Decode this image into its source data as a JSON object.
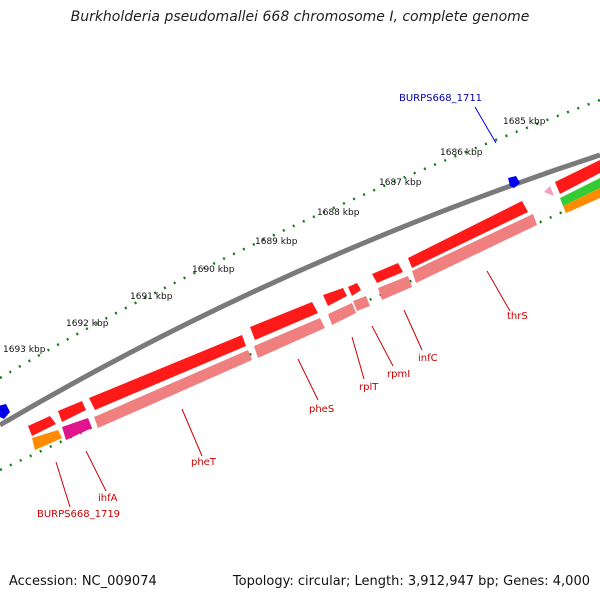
{
  "title": "Burkholderia pseudomallei 668 chromosome I, complete genome",
  "footer": {
    "accession": "Accession: NC_009074",
    "summary": "Topology: circular; Length: 3,912,947 bp; Genes: 4,000"
  },
  "colors": {
    "backbone": "#808080",
    "tick": "#1a7a1a",
    "red_gene": "#ff1a1a",
    "pink_gene": "#f08080",
    "magenta_gene": "#e0148c",
    "orange_gene": "#ff8c00",
    "green_gene": "#33cc33",
    "blue_gene": "#0000ee",
    "gene_label": "#cc0000",
    "special_label": "#0000aa"
  },
  "kbp_labels": [
    "1685 kbp",
    "1686 kbp",
    "1687 kbp",
    "1688 kbp",
    "1689 kbp",
    "1690 kbp",
    "1691 kbp",
    "1692 kbp",
    "1693 kbp"
  ],
  "gene_labels": [
    "BURPS668_1711",
    "thrS",
    "infC",
    "rpmI",
    "rplT",
    "pheS",
    "pheT",
    "ihfA",
    "BURPS668_1719"
  ]
}
